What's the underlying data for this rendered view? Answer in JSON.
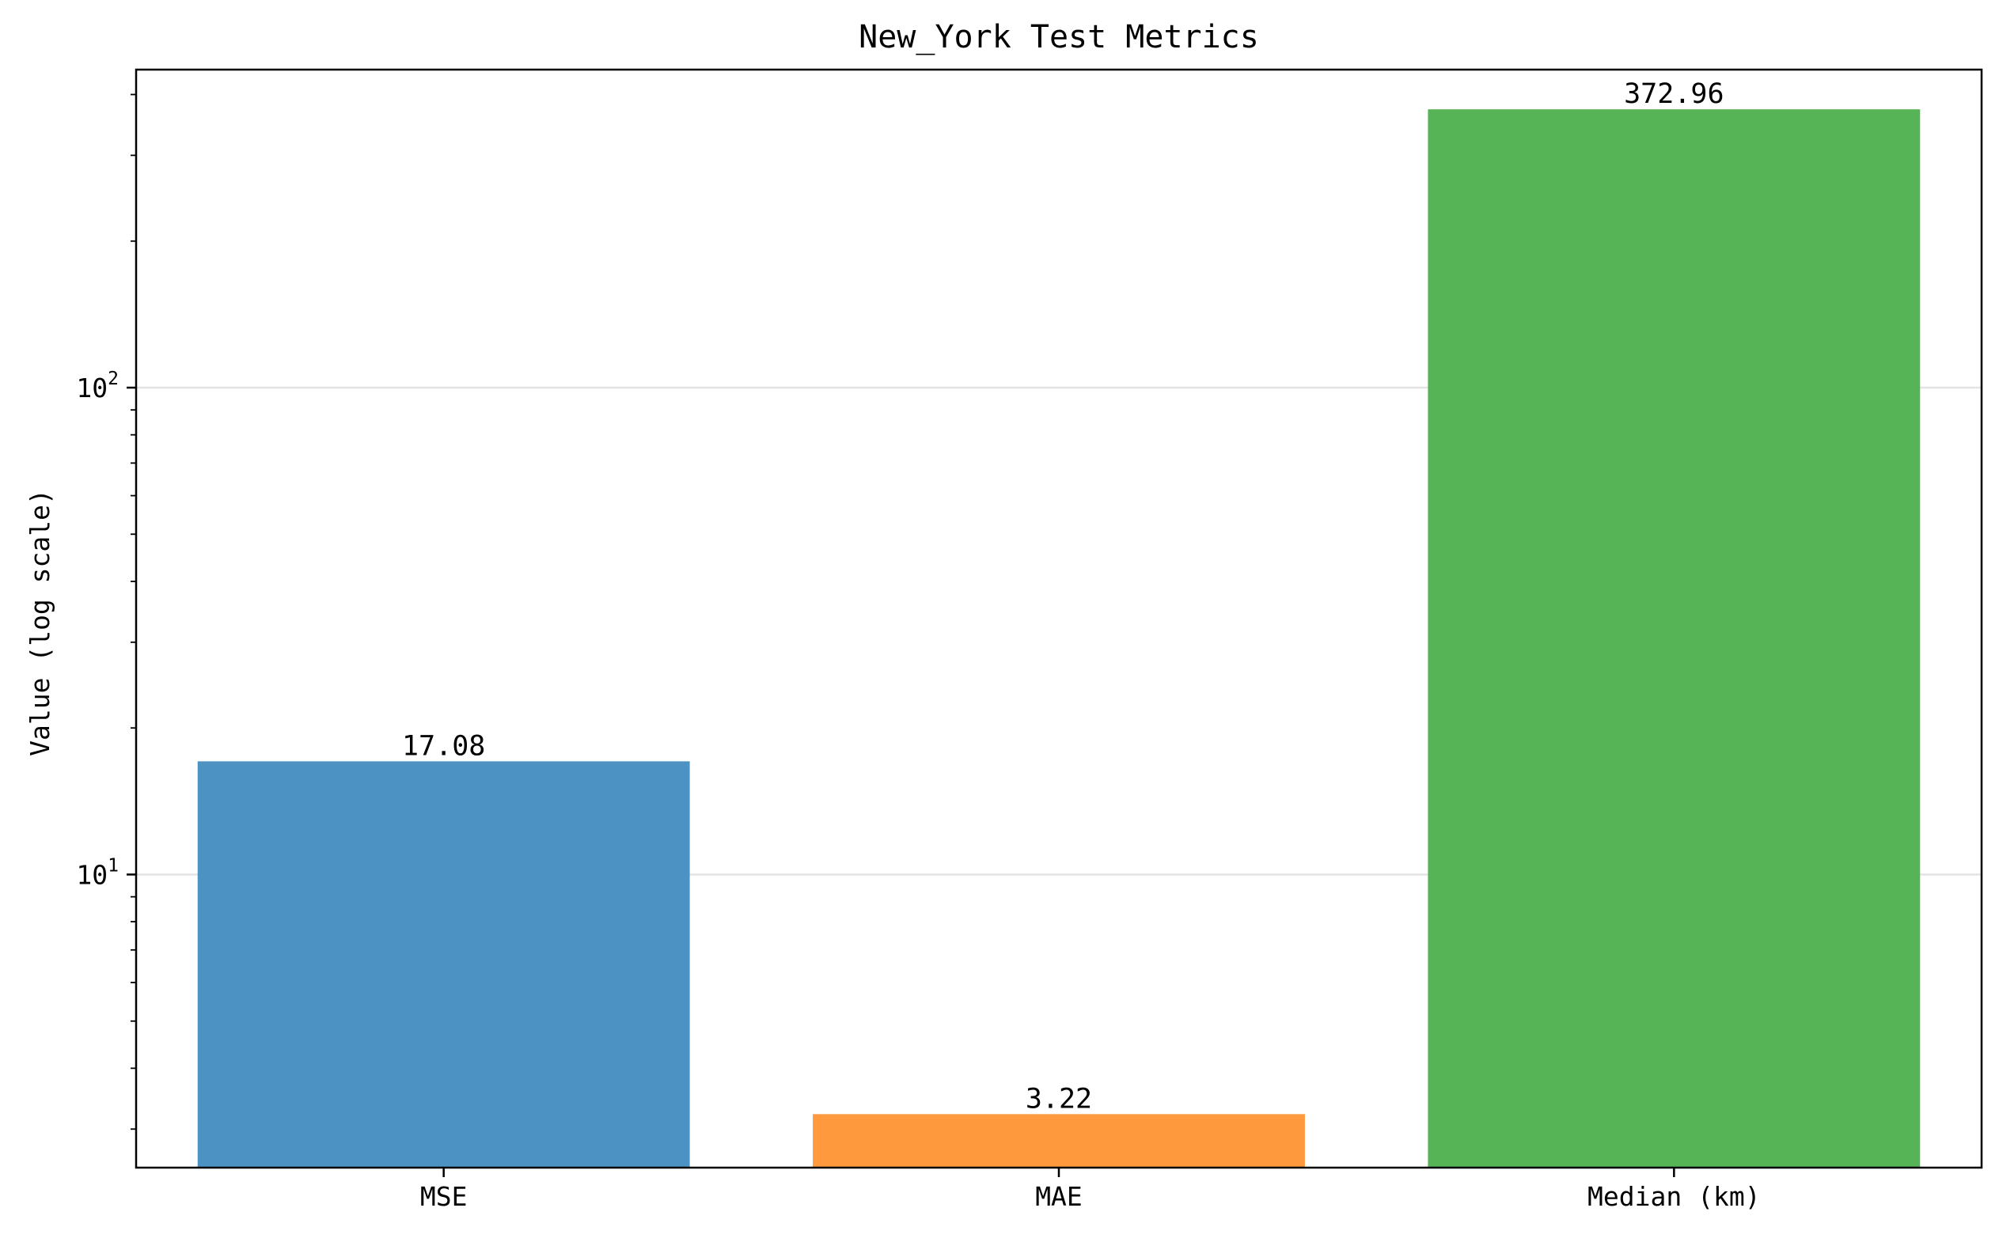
{
  "chart_data": {
    "type": "bar",
    "title": "New_York Test Metrics",
    "xlabel": "",
    "ylabel": "Value (log scale)",
    "yscale": "log",
    "ylim": [
      2.5,
      450
    ],
    "grid": "y-major",
    "categories": [
      "MSE",
      "MAE",
      "Median (km)"
    ],
    "values": [
      17.08,
      3.22,
      372.96
    ],
    "data_labels": [
      "17.08",
      "3.22",
      "372.96"
    ],
    "colors": [
      "#4c92c3",
      "#ff993e",
      "#56b356"
    ],
    "major_ticks": [
      {
        "value": 10,
        "base": "10",
        "exp": "1"
      },
      {
        "value": 100,
        "base": "10",
        "exp": "2"
      }
    ],
    "minor_ticks": [
      3,
      4,
      5,
      6,
      7,
      8,
      9,
      20,
      30,
      40,
      50,
      60,
      70,
      80,
      90,
      200,
      300,
      400
    ]
  }
}
